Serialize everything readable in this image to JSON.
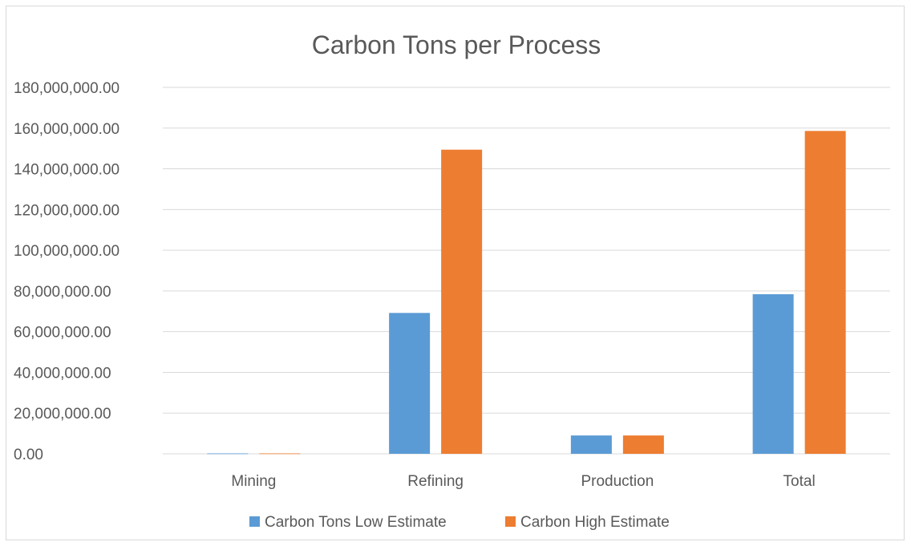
{
  "chart_data": {
    "type": "bar",
    "title": "Carbon Tons per Process",
    "xlabel": "",
    "ylabel": "",
    "categories": [
      "Mining",
      "Refining",
      "Production",
      "Total"
    ],
    "series": [
      {
        "name": "Carbon Tons Low Estimate",
        "color": "#5b9bd5",
        "values": [
          200000,
          69200000,
          9000000,
          78400000
        ]
      },
      {
        "name": "Carbon High Estimate",
        "color": "#ed7d31",
        "values": [
          200000,
          149400000,
          9000000,
          158600000
        ]
      }
    ],
    "ylim": [
      0,
      180000000
    ],
    "yticks": [
      0,
      20000000,
      40000000,
      60000000,
      80000000,
      100000000,
      120000000,
      140000000,
      160000000,
      180000000
    ],
    "ytick_labels": [
      "0.00",
      "20,000,000.00",
      "40,000,000.00",
      "60,000,000.00",
      "80,000,000.00",
      "100,000,000.00",
      "120,000,000.00",
      "140,000,000.00",
      "160,000,000.00",
      "180,000,000.00"
    ],
    "grid": true,
    "gridline_color": "#d9d9d9",
    "legend_position": "bottom"
  }
}
